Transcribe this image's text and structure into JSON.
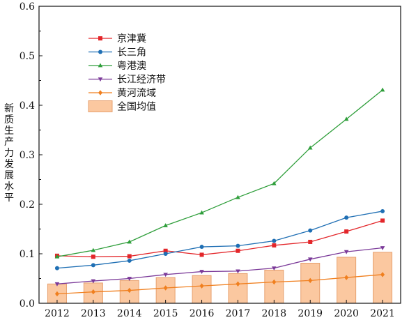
{
  "chart_data": {
    "type": "line",
    "title": "",
    "xlabel": "",
    "ylabel": "新质生产力发展水平",
    "x": [
      2012,
      2013,
      2014,
      2015,
      2016,
      2017,
      2018,
      2019,
      2020,
      2021
    ],
    "ylim": [
      0,
      0.6
    ],
    "yticks": [
      0.0,
      0.1,
      0.2,
      0.3,
      0.4,
      0.5,
      0.6
    ],
    "ytick_labels": [
      "0.0",
      "0.1",
      "0.2",
      "0.3",
      "0.4",
      "0.5",
      "0.6"
    ],
    "grid": false,
    "legend_position": "top-left",
    "series": [
      {
        "name": "京津冀",
        "kind": "line",
        "marker": "square",
        "color": "#e3262a",
        "values": [
          0.096,
          0.094,
          0.095,
          0.106,
          0.098,
          0.106,
          0.117,
          0.124,
          0.145,
          0.167
        ]
      },
      {
        "name": "长三角",
        "kind": "line",
        "marker": "circle",
        "color": "#1f6fb4",
        "values": [
          0.071,
          0.077,
          0.086,
          0.1,
          0.114,
          0.116,
          0.126,
          0.147,
          0.173,
          0.186
        ]
      },
      {
        "name": "粤港澳",
        "kind": "line",
        "marker": "triangle-up",
        "color": "#2e9e3a",
        "values": [
          0.094,
          0.107,
          0.124,
          0.157,
          0.183,
          0.214,
          0.242,
          0.314,
          0.372,
          0.431
        ]
      },
      {
        "name": "长江经济带",
        "kind": "line",
        "marker": "triangle-down",
        "color": "#7b3a99",
        "values": [
          0.039,
          0.045,
          0.05,
          0.058,
          0.064,
          0.065,
          0.071,
          0.089,
          0.104,
          0.112
        ]
      },
      {
        "name": "黄河流域",
        "kind": "line",
        "marker": "diamond",
        "color": "#f07f1e",
        "values": [
          0.019,
          0.023,
          0.026,
          0.031,
          0.035,
          0.039,
          0.043,
          0.046,
          0.052,
          0.058
        ]
      },
      {
        "name": "全国均值",
        "kind": "bar",
        "color": "#fbc8a0",
        "edge_color": "#e6a06f",
        "values": [
          0.039,
          0.041,
          0.046,
          0.052,
          0.056,
          0.06,
          0.067,
          0.081,
          0.093,
          0.103
        ]
      }
    ]
  }
}
